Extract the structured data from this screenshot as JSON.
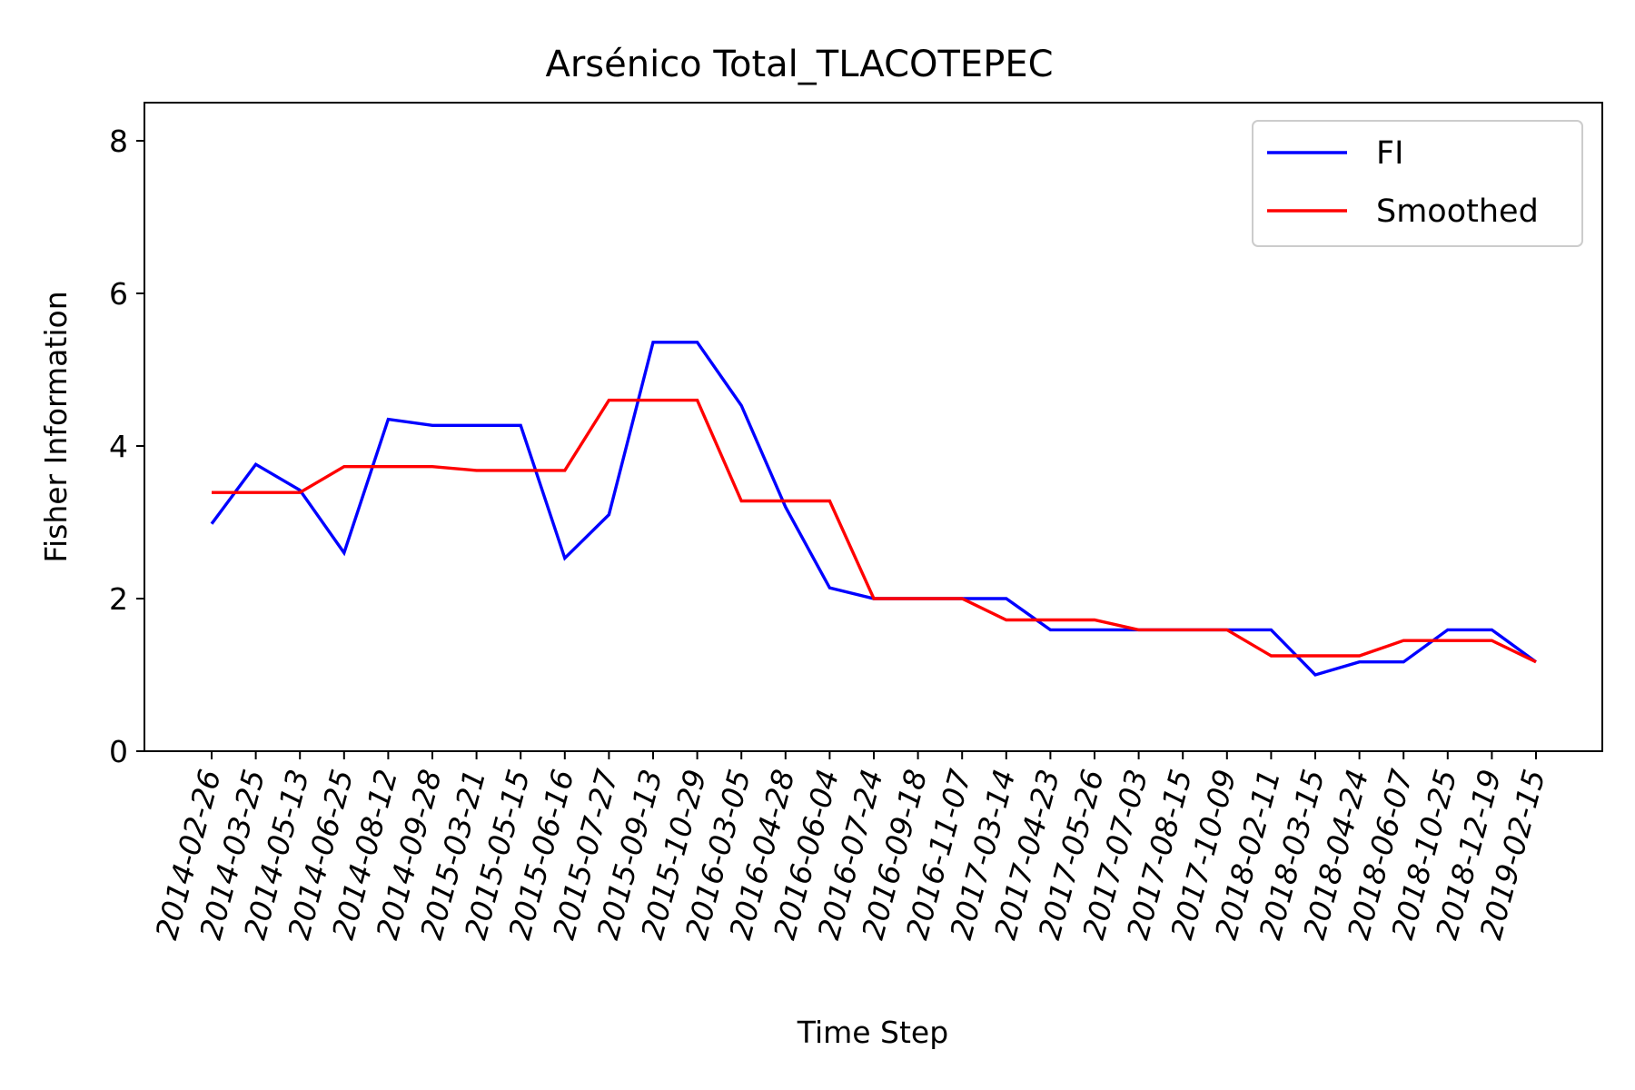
{
  "chart_data": {
    "type": "line",
    "title": "Arsénico Total_TLACOTEPEC",
    "xlabel": "Time Step",
    "ylabel": "Fisher Information",
    "ylim": [
      0,
      8.5
    ],
    "yticks": [
      0,
      2,
      4,
      6,
      8
    ],
    "grid": false,
    "legend_position": "top-right",
    "categories": [
      "2014-02-26",
      "2014-03-25",
      "2014-05-13",
      "2014-06-25",
      "2014-08-12",
      "2014-09-28",
      "2015-03-21",
      "2015-05-15",
      "2015-06-16",
      "2015-07-27",
      "2015-09-13",
      "2015-10-29",
      "2016-03-05",
      "2016-04-28",
      "2016-06-04",
      "2016-07-24",
      "2016-09-18",
      "2016-11-07",
      "2017-03-14",
      "2017-04-23",
      "2017-05-26",
      "2017-07-03",
      "2017-08-15",
      "2017-10-09",
      "2018-02-11",
      "2018-03-15",
      "2018-04-24",
      "2018-06-07",
      "2018-10-25",
      "2018-12-19",
      "2019-02-15"
    ],
    "series": [
      {
        "name": "FI",
        "color": "#0000ff",
        "values": [
          2.98,
          3.76,
          3.42,
          2.6,
          4.35,
          4.27,
          4.27,
          4.27,
          2.53,
          3.1,
          5.36,
          5.36,
          4.53,
          3.2,
          2.14,
          2.0,
          2.0,
          2.0,
          2.0,
          1.59,
          1.59,
          1.59,
          1.59,
          1.59,
          1.59,
          1.0,
          1.17,
          1.17,
          1.59,
          1.59,
          1.17
        ]
      },
      {
        "name": "Smoothed",
        "color": "#ff0000",
        "values": [
          3.39,
          3.39,
          3.39,
          3.73,
          3.73,
          3.73,
          3.68,
          3.68,
          3.68,
          4.6,
          4.6,
          4.6,
          3.28,
          3.28,
          3.28,
          2.0,
          2.0,
          2.0,
          1.72,
          1.72,
          1.72,
          1.59,
          1.59,
          1.59,
          1.25,
          1.25,
          1.25,
          1.45,
          1.45,
          1.45,
          1.17
        ]
      }
    ]
  }
}
